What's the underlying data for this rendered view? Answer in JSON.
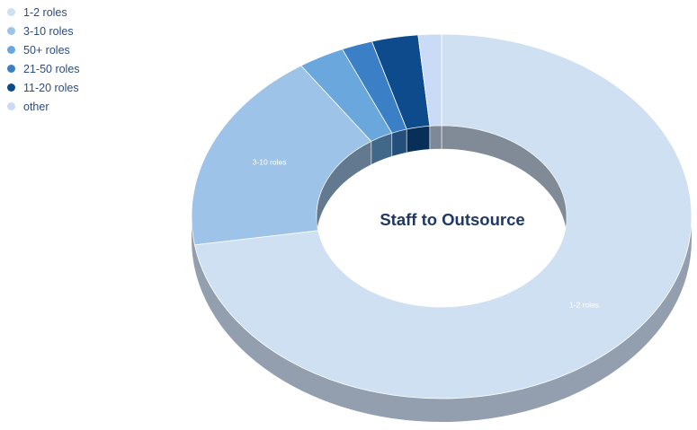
{
  "chart_data": {
    "type": "pie",
    "style": "3d-donut",
    "title": "Staff to Outsource",
    "categories": [
      "1-2 roles",
      "3-10 roles",
      "50+ roles",
      "21-50 roles",
      "11-20 roles",
      "other"
    ],
    "values": [
      72.5,
      18.0,
      3.0,
      2.0,
      3.0,
      1.5
    ],
    "unit": "%",
    "data_labels": [
      "1-2 roles",
      "3-10 roles",
      "",
      "",
      "",
      ""
    ],
    "colors": [
      "#cfe0f3",
      "#9ec3e8",
      "#6aa7dd",
      "#3b7fc6",
      "#0d4b8c",
      "#c9dbf7"
    ],
    "legend_position": "top-left",
    "grid": false
  }
}
